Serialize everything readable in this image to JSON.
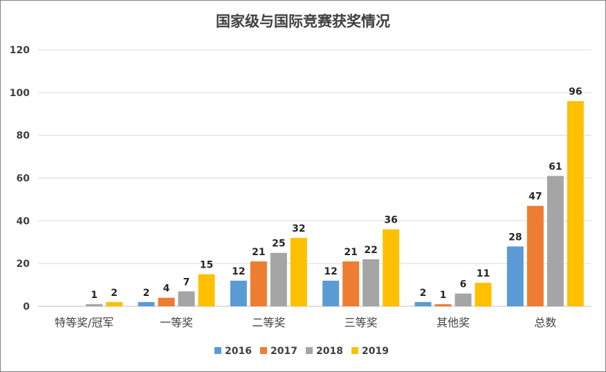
{
  "chart_data": {
    "type": "bar",
    "title": "国家级与国际竞赛获奖情况",
    "categories": [
      "特等奖/冠军",
      "一等奖",
      "二等奖",
      "三等奖",
      "其他奖",
      "总数"
    ],
    "series": [
      {
        "name": "2016",
        "color": "#5b9bd5",
        "values": [
          0,
          2,
          12,
          12,
          2,
          28
        ]
      },
      {
        "name": "2017",
        "color": "#ed7d31",
        "values": [
          0,
          4,
          21,
          21,
          1,
          47
        ]
      },
      {
        "name": "2018",
        "color": "#a5a5a5",
        "values": [
          1,
          7,
          25,
          22,
          6,
          61
        ]
      },
      {
        "name": "2019",
        "color": "#ffc000",
        "values": [
          2,
          15,
          32,
          36,
          11,
          96
        ]
      }
    ],
    "data_labels": [
      [
        null,
        "2",
        "12",
        "12",
        "2",
        "28"
      ],
      [
        null,
        "4",
        "21",
        "21",
        "1",
        "47"
      ],
      [
        "1",
        "7",
        "25",
        "22",
        "6",
        "61"
      ],
      [
        "2",
        "15",
        "32",
        "36",
        "11",
        "96"
      ]
    ],
    "yticks": [
      "0",
      "20",
      "40",
      "60",
      "80",
      "100",
      "120"
    ],
    "ylim": [
      0,
      120
    ],
    "grid": true,
    "legend_position": "bottom"
  }
}
